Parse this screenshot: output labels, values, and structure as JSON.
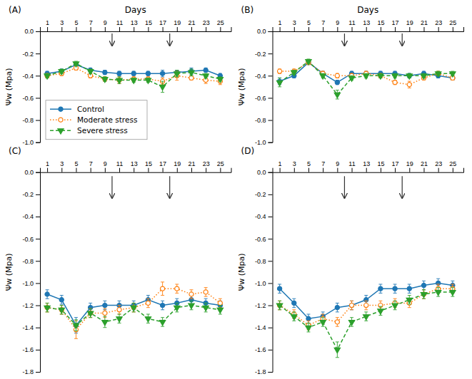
{
  "chart_data": [
    {
      "type": "line",
      "title": "(A)",
      "xlabel": "Days",
      "ylabel": "Ψw (Mpa)",
      "x": [
        1,
        3,
        5,
        7,
        9,
        11,
        13,
        15,
        17,
        19,
        21,
        23,
        25
      ],
      "xlim": [
        0,
        26.5
      ],
      "xticks": [
        1,
        3,
        5,
        7,
        9,
        11,
        13,
        15,
        17,
        19,
        21,
        23,
        25
      ],
      "ylim": [
        -1.0,
        0.0
      ],
      "yticks": [
        {
          "value": 0.0,
          "label": "0.0"
        },
        -0.2,
        -0.4,
        -0.6,
        -0.8,
        {
          "value": -1.0,
          "label": "-1.0"
        }
      ],
      "legend": "lower-left",
      "arrows": [
        10,
        18
      ],
      "series": [
        {
          "name": "Control",
          "marker": "circle",
          "line_style": "solid",
          "values": [
            -0.38,
            -0.36,
            -0.3,
            -0.35,
            -0.37,
            -0.38,
            -0.38,
            -0.38,
            -0.38,
            -0.37,
            -0.36,
            -0.35,
            -0.4
          ],
          "errors": [
            0.02,
            0.02,
            0.02,
            0.02,
            0.02,
            0.02,
            0.02,
            0.02,
            0.03,
            0.02,
            0.03,
            0.02,
            0.02
          ]
        },
        {
          "name": "Moderate stress",
          "marker": "open-circle",
          "line_style": "dotted",
          "values": [
            -0.4,
            -0.38,
            -0.33,
            -0.4,
            -0.43,
            -0.44,
            -0.43,
            -0.43,
            -0.45,
            -0.4,
            -0.42,
            -0.44,
            -0.45
          ],
          "errors": [
            0.02,
            0.02,
            0.02,
            0.02,
            0.02,
            0.03,
            0.02,
            0.02,
            0.03,
            0.04,
            0.02,
            0.03,
            0.03
          ]
        },
        {
          "name": "Severe stress",
          "marker": "triangle-down",
          "line_style": "dashed",
          "values": [
            -0.4,
            -0.36,
            -0.29,
            -0.36,
            -0.43,
            -0.44,
            -0.44,
            -0.44,
            -0.5,
            -0.38,
            -0.37,
            -0.4,
            -0.43
          ],
          "errors": [
            0.02,
            0.02,
            0.02,
            0.02,
            0.02,
            0.03,
            0.02,
            0.02,
            0.05,
            0.03,
            0.03,
            0.02,
            0.02
          ]
        }
      ]
    },
    {
      "type": "line",
      "title": "(B)",
      "xlabel": "Days",
      "ylabel": "Ψw (Mpa)",
      "x": [
        1,
        3,
        5,
        7,
        9,
        11,
        13,
        15,
        17,
        19,
        21,
        23,
        25
      ],
      "xlim": [
        0,
        26.5
      ],
      "xticks": [
        1,
        3,
        5,
        7,
        9,
        11,
        13,
        15,
        17,
        19,
        21,
        23,
        25
      ],
      "ylim": [
        -1.0,
        0.0
      ],
      "yticks": [
        {
          "value": 0.0,
          "label": "0.0"
        },
        -0.2,
        -0.4,
        -0.6,
        -0.8,
        {
          "value": -1.0,
          "label": "-1.0"
        }
      ],
      "arrows": [
        10,
        18
      ],
      "series": [
        {
          "name": "Control",
          "marker": "circle",
          "line_style": "solid",
          "values": [
            -0.45,
            -0.4,
            -0.28,
            -0.38,
            -0.46,
            -0.38,
            -0.38,
            -0.38,
            -0.38,
            -0.4,
            -0.38,
            -0.4,
            -0.42
          ],
          "errors": [
            0.03,
            0.02,
            0.02,
            0.02,
            0.02,
            0.02,
            0.02,
            0.02,
            0.02,
            0.02,
            0.02,
            0.02,
            0.02
          ]
        },
        {
          "name": "Moderate stress",
          "marker": "open-circle",
          "line_style": "dotted",
          "values": [
            -0.36,
            -0.36,
            -0.28,
            -0.38,
            -0.4,
            -0.4,
            -0.38,
            -0.4,
            -0.46,
            -0.48,
            -0.42,
            -0.38,
            -0.42
          ],
          "errors": [
            0.02,
            0.02,
            0.02,
            0.02,
            0.02,
            0.02,
            0.02,
            0.02,
            0.02,
            0.03,
            0.02,
            0.02,
            0.02
          ]
        },
        {
          "name": "Severe stress",
          "marker": "triangle-down",
          "line_style": "dashed",
          "values": [
            -0.46,
            -0.37,
            -0.27,
            -0.4,
            -0.57,
            -0.42,
            -0.4,
            -0.4,
            -0.4,
            -0.4,
            -0.4,
            -0.38,
            -0.38
          ],
          "errors": [
            0.04,
            0.02,
            0.02,
            0.02,
            0.04,
            0.02,
            0.02,
            0.02,
            0.02,
            0.02,
            0.02,
            0.02,
            0.02
          ]
        }
      ]
    },
    {
      "type": "line",
      "title": "(C)",
      "ylabel": "Ψw (Mpa)",
      "x": [
        1,
        3,
        5,
        7,
        9,
        11,
        13,
        15,
        17,
        19,
        21,
        23,
        25
      ],
      "xlim": [
        0,
        26.5
      ],
      "xticks": [
        1,
        3,
        5,
        7,
        9,
        11,
        13,
        15,
        17,
        19,
        21,
        23,
        25
      ],
      "ylim": [
        -1.8,
        0.0
      ],
      "yticks": [
        {
          "value": 0.0,
          "label": "0.0"
        },
        -0.2,
        -0.4,
        -0.6,
        -0.8,
        {
          "value": -1.0,
          "label": "-1.0"
        },
        -1.2,
        -1.4,
        -1.6,
        -1.8
      ],
      "arrows": [
        10,
        18
      ],
      "series": [
        {
          "name": "Control",
          "marker": "circle",
          "line_style": "solid",
          "values": [
            -1.1,
            -1.15,
            -1.38,
            -1.22,
            -1.2,
            -1.2,
            -1.2,
            -1.15,
            -1.2,
            -1.18,
            -1.15,
            -1.18,
            -1.2
          ],
          "errors": [
            0.04,
            0.04,
            0.07,
            0.04,
            0.04,
            0.04,
            0.04,
            0.04,
            0.04,
            0.04,
            0.04,
            0.04,
            0.04
          ]
        },
        {
          "name": "Moderate stress",
          "marker": "open-circle",
          "line_style": "dotted",
          "values": [
            -1.22,
            -1.24,
            -1.42,
            -1.27,
            -1.27,
            -1.24,
            -1.22,
            -1.18,
            -1.05,
            -1.05,
            -1.1,
            -1.08,
            -1.18
          ],
          "errors": [
            0.04,
            0.04,
            0.08,
            0.04,
            0.04,
            0.04,
            0.04,
            0.04,
            0.06,
            0.04,
            0.04,
            0.04,
            0.04
          ]
        },
        {
          "name": "Severe stress",
          "marker": "triangle-down",
          "line_style": "dashed",
          "values": [
            -1.22,
            -1.24,
            -1.38,
            -1.27,
            -1.35,
            -1.32,
            -1.22,
            -1.32,
            -1.35,
            -1.22,
            -1.2,
            -1.22,
            -1.24
          ],
          "errors": [
            0.04,
            0.04,
            0.05,
            0.04,
            0.05,
            0.04,
            0.04,
            0.04,
            0.04,
            0.04,
            0.04,
            0.04,
            0.04
          ]
        }
      ]
    },
    {
      "type": "line",
      "title": "(D)",
      "ylabel": "Ψw (Mpa)",
      "x": [
        1,
        3,
        5,
        7,
        9,
        11,
        13,
        15,
        17,
        19,
        21,
        23,
        25
      ],
      "xlim": [
        0,
        26.5
      ],
      "xticks": [
        1,
        3,
        5,
        7,
        9,
        11,
        13,
        15,
        17,
        19,
        21,
        23,
        25
      ],
      "ylim": [
        -1.8,
        0.0
      ],
      "yticks": [
        {
          "value": 0.0,
          "label": "0.0"
        },
        -0.2,
        -0.4,
        -0.6,
        -0.8,
        {
          "value": -1.0,
          "label": "-1.0"
        },
        -1.2,
        -1.4,
        -1.6,
        -1.8
      ],
      "arrows": [
        10,
        18
      ],
      "series": [
        {
          "name": "Control",
          "marker": "circle",
          "line_style": "solid",
          "values": [
            -1.05,
            -1.18,
            -1.32,
            -1.3,
            -1.22,
            -1.2,
            -1.15,
            -1.05,
            -1.05,
            -1.05,
            -1.02,
            -1.0,
            -1.02
          ],
          "errors": [
            0.04,
            0.04,
            0.04,
            0.04,
            0.04,
            0.04,
            0.04,
            0.04,
            0.04,
            0.04,
            0.04,
            0.04,
            0.04
          ]
        },
        {
          "name": "Moderate stress",
          "marker": "open-circle",
          "line_style": "dotted",
          "values": [
            -1.2,
            -1.28,
            -1.38,
            -1.32,
            -1.35,
            -1.2,
            -1.2,
            -1.2,
            -1.18,
            -1.18,
            -1.1,
            -1.05,
            -1.05
          ],
          "errors": [
            0.04,
            0.04,
            0.04,
            0.04,
            0.04,
            0.04,
            0.04,
            0.04,
            0.04,
            0.04,
            0.04,
            0.04,
            0.04
          ]
        },
        {
          "name": "Severe stress",
          "marker": "triangle-down",
          "line_style": "dashed",
          "values": [
            -1.2,
            -1.3,
            -1.4,
            -1.35,
            -1.6,
            -1.35,
            -1.3,
            -1.25,
            -1.2,
            -1.15,
            -1.1,
            -1.08,
            -1.08
          ],
          "errors": [
            0.04,
            0.04,
            0.04,
            0.04,
            0.07,
            0.04,
            0.04,
            0.04,
            0.04,
            0.04,
            0.04,
            0.04,
            0.04
          ]
        }
      ]
    }
  ]
}
